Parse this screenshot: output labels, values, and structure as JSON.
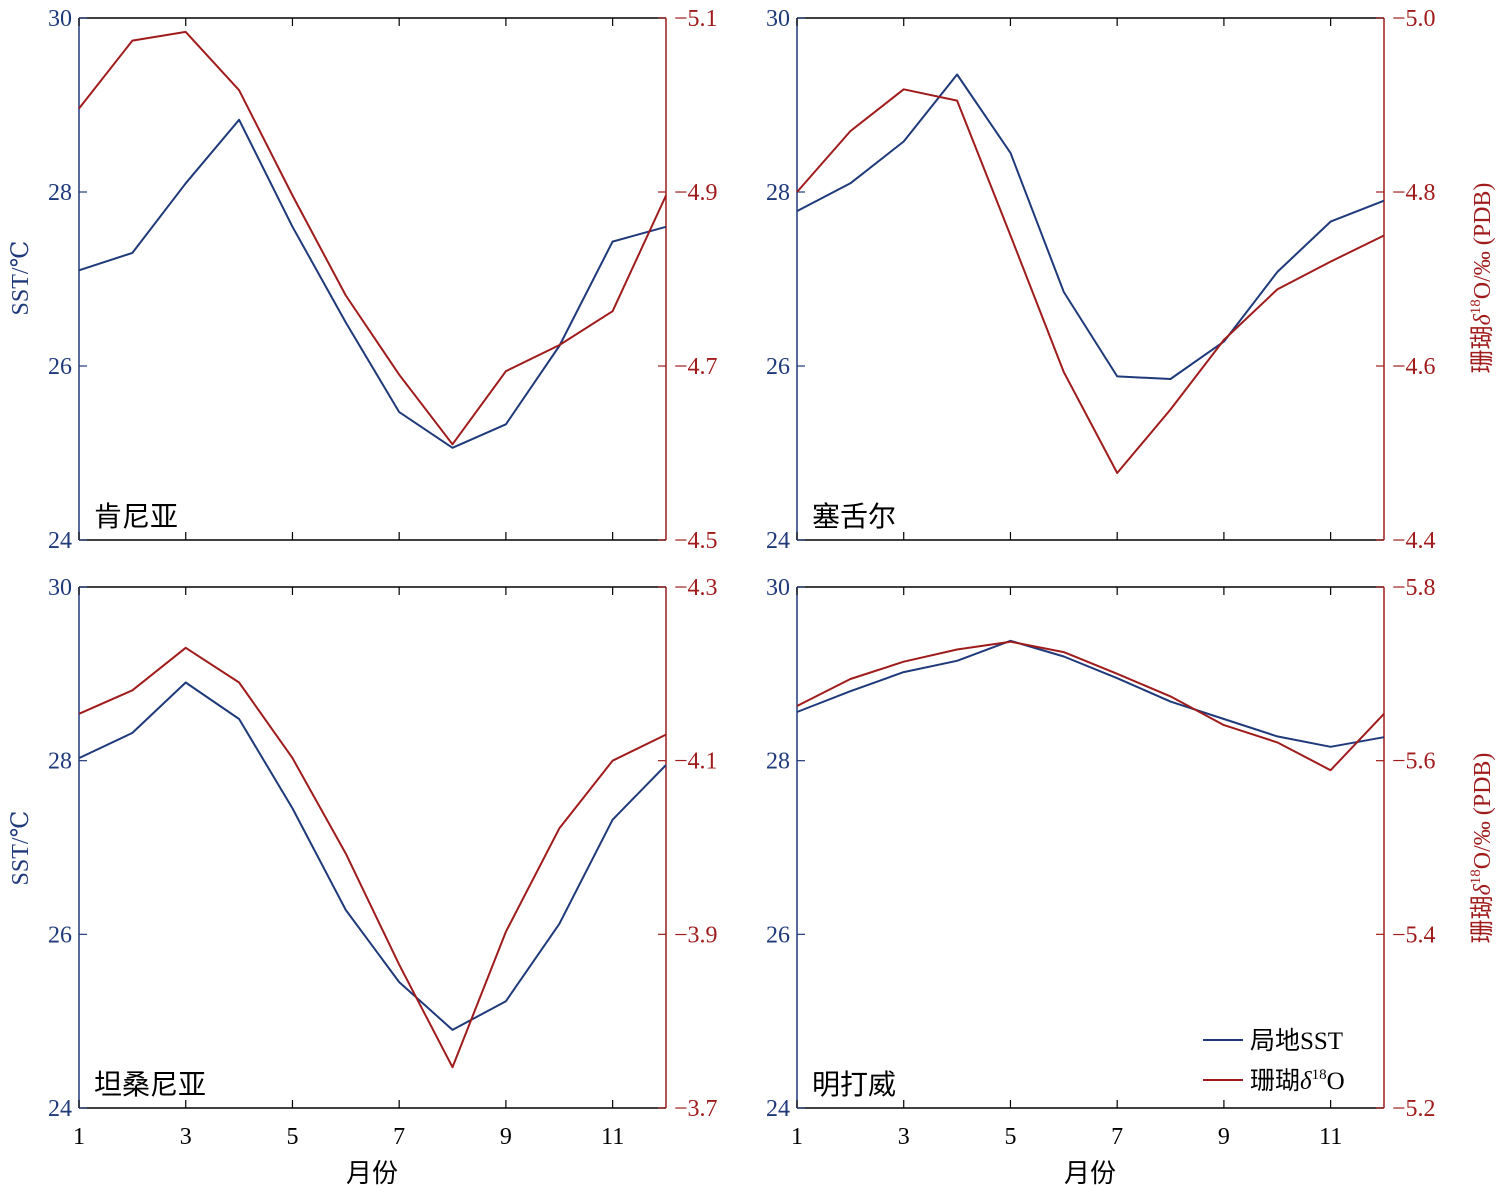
{
  "colors": {
    "sst": "#1f3a7a",
    "d18o": "#a01c1c",
    "frame": "#000000"
  },
  "legend": {
    "placement": "bottom-right of 明打威 panel",
    "sst_label": "局地SST",
    "d18o_prefix": "珊瑚",
    "d18o_sup": "18",
    "d18o_suffix": "O"
  },
  "labels": {
    "xlabel": "月份",
    "ylabel_left": "SST/℃",
    "ylabel_right_prefix": "珊瑚",
    "ylabel_right_sup": "18",
    "ylabel_right_suffix": "O/‰ (PDB)"
  },
  "chart_data": [
    {
      "type": "line",
      "title": "肯尼亚",
      "x": [
        1,
        2,
        3,
        4,
        5,
        6,
        7,
        8,
        9,
        10,
        11,
        12
      ],
      "xticks": [
        "1",
        "3",
        "5",
        "7",
        "9",
        "11"
      ],
      "y_left": {
        "ylim": [
          24,
          30
        ],
        "ticks": [
          "24",
          "26",
          "28",
          "30"
        ]
      },
      "y_right": {
        "ylim": [
          -4.5,
          -5.1
        ],
        "inverted": true,
        "ticks": [
          "−4.5",
          "−4.7",
          "−4.9",
          "−5.1"
        ]
      },
      "series": [
        {
          "axis": "left",
          "values": [
            27.1,
            27.3,
            28.1,
            28.83,
            27.6,
            26.5,
            25.47,
            25.06,
            25.33,
            26.23,
            27.43,
            27.6
          ]
        },
        {
          "axis": "right",
          "values": [
            -4.996,
            -5.074,
            -5.084,
            -5.017,
            -4.896,
            -4.781,
            -4.69,
            -4.61,
            -4.694,
            -4.724,
            -4.763,
            -4.896
          ]
        }
      ]
    },
    {
      "type": "line",
      "title": "塞舌尔",
      "x": [
        1,
        2,
        3,
        4,
        5,
        6,
        7,
        8,
        9,
        10,
        11,
        12
      ],
      "xticks": [
        "1",
        "3",
        "5",
        "7",
        "9",
        "11"
      ],
      "y_left": {
        "ylim": [
          24,
          30
        ],
        "ticks": [
          "24",
          "26",
          "28",
          "30"
        ]
      },
      "y_right": {
        "ylim": [
          -4.4,
          -5.0
        ],
        "inverted": true,
        "ticks": [
          "−4.4",
          "−4.6",
          "−4.8",
          "−5.0"
        ]
      },
      "series": [
        {
          "axis": "left",
          "values": [
            27.78,
            28.1,
            28.58,
            29.35,
            28.45,
            26.85,
            25.88,
            25.85,
            26.28,
            27.08,
            27.66,
            27.9
          ]
        },
        {
          "axis": "right",
          "values": [
            -4.8,
            -4.87,
            -4.918,
            -4.905,
            -4.75,
            -4.593,
            -4.477,
            -4.55,
            -4.63,
            -4.688,
            -4.72,
            -4.75
          ]
        }
      ]
    },
    {
      "type": "line",
      "title": "坦桑尼亚",
      "x": [
        1,
        2,
        3,
        4,
        5,
        6,
        7,
        8,
        9,
        10,
        11,
        12
      ],
      "xticks": [
        "1",
        "3",
        "5",
        "7",
        "9",
        "11"
      ],
      "y_left": {
        "ylim": [
          24,
          30
        ],
        "ticks": [
          "24",
          "26",
          "28",
          "30"
        ]
      },
      "y_right": {
        "ylim": [
          -3.7,
          -4.3
        ],
        "inverted": true,
        "ticks": [
          "−3.7",
          "−3.9",
          "−4.1",
          "−4.3"
        ]
      },
      "series": [
        {
          "axis": "left",
          "values": [
            28.03,
            28.32,
            28.9,
            28.48,
            27.45,
            26.28,
            25.45,
            24.9,
            25.23,
            26.12,
            27.32,
            27.95
          ]
        },
        {
          "axis": "right",
          "values": [
            -4.154,
            -4.181,
            -4.23,
            -4.19,
            -4.103,
            -3.993,
            -3.865,
            -3.747,
            -3.903,
            -4.022,
            -4.1,
            -4.13
          ]
        }
      ]
    },
    {
      "type": "line",
      "title": "明打威",
      "x": [
        1,
        2,
        3,
        4,
        5,
        6,
        7,
        8,
        9,
        10,
        11,
        12
      ],
      "xticks": [
        "1",
        "3",
        "5",
        "7",
        "9",
        "11"
      ],
      "y_left": {
        "ylim": [
          24,
          30
        ],
        "ticks": [
          "24",
          "26",
          "28",
          "30"
        ]
      },
      "y_right": {
        "ylim": [
          -5.2,
          -5.8
        ],
        "inverted": true,
        "ticks": [
          "−5.2",
          "−5.4",
          "−5.6",
          "−5.8"
        ]
      },
      "series": [
        {
          "axis": "left",
          "values": [
            28.56,
            28.8,
            29.02,
            29.15,
            29.38,
            29.2,
            28.95,
            28.68,
            28.48,
            28.28,
            28.16,
            28.27
          ]
        },
        {
          "axis": "right",
          "values": [
            -5.663,
            -5.694,
            -5.714,
            -5.728,
            -5.737,
            -5.725,
            -5.7,
            -5.674,
            -5.641,
            -5.621,
            -5.589,
            -5.654
          ]
        }
      ]
    }
  ]
}
